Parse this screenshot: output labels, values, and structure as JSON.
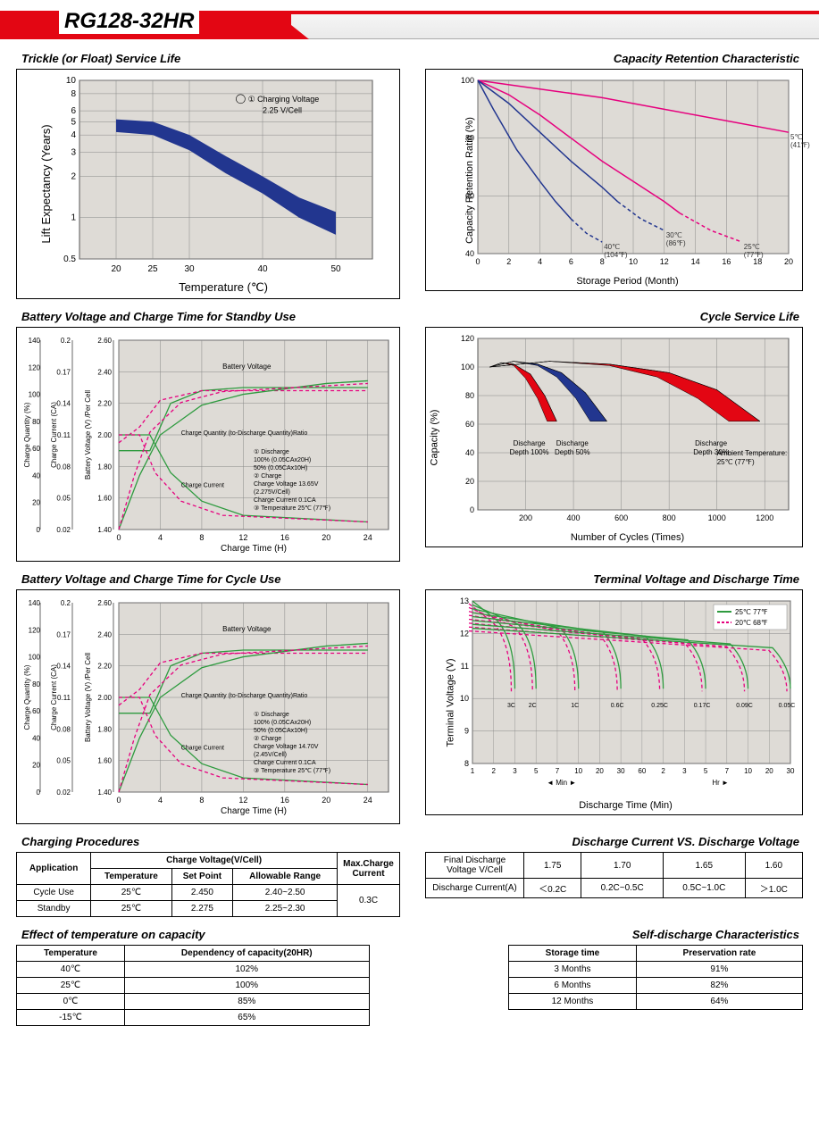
{
  "model": "RG128-32HR",
  "trickle": {
    "title": "Trickle (or Float) Service Life",
    "xlabel": "Temperature (℃)",
    "ylabel": "Lift  Expectancy (Years)",
    "xlim": [
      15,
      55
    ],
    "xticks": [
      20,
      25,
      30,
      40,
      50
    ],
    "ylim_log": [
      0.5,
      10
    ],
    "yticks": [
      0.5,
      1,
      2,
      3,
      4,
      5,
      6,
      8,
      10
    ],
    "band_upper": [
      [
        20,
        5.2
      ],
      [
        25,
        5.0
      ],
      [
        30,
        4.0
      ],
      [
        35,
        2.8
      ],
      [
        40,
        2.0
      ],
      [
        45,
        1.4
      ],
      [
        50,
        1.1
      ]
    ],
    "band_lower": [
      [
        20,
        4.2
      ],
      [
        25,
        4.0
      ],
      [
        30,
        3.1
      ],
      [
        35,
        2.1
      ],
      [
        40,
        1.5
      ],
      [
        45,
        1.0
      ],
      [
        50,
        0.75
      ]
    ],
    "band_color": "#22368f",
    "ann1": "① Charging Voltage",
    "ann2": "2.25 V/Cell",
    "axis_fontsize": 13,
    "bg": "#dedbd6",
    "grid": "#888888"
  },
  "retention": {
    "title": "Capacity Retention Characteristic",
    "xlabel": "Storage Period (Month)",
    "ylabel": "Capacity Retention Ratio (%)",
    "xlim": [
      0,
      20
    ],
    "xticks": [
      0,
      2,
      4,
      6,
      8,
      10,
      12,
      14,
      16,
      18,
      20
    ],
    "ylim": [
      40,
      100
    ],
    "yticks": [
      40,
      60,
      80,
      100
    ],
    "curves": [
      {
        "label": "5℃",
        "sub": "(41℉)",
        "color": "#e6007e",
        "pts": [
          [
            0,
            100
          ],
          [
            4,
            97
          ],
          [
            8,
            94
          ],
          [
            12,
            90
          ],
          [
            16,
            86
          ],
          [
            20,
            82
          ]
        ]
      },
      {
        "label": "25℃",
        "sub": "(77℉)",
        "color": "#e6007e",
        "pts": [
          [
            0,
            100
          ],
          [
            2,
            95
          ],
          [
            4,
            88
          ],
          [
            6,
            80
          ],
          [
            8,
            72
          ],
          [
            10,
            65
          ],
          [
            12,
            58
          ],
          [
            13,
            54
          ]
        ],
        "dash_after": 13,
        "dash_pts": [
          [
            13,
            54
          ],
          [
            15,
            48
          ],
          [
            17,
            44
          ]
        ]
      },
      {
        "label": "30℃",
        "sub": "(86℉)",
        "color": "#22368f",
        "pts": [
          [
            0,
            100
          ],
          [
            2,
            92
          ],
          [
            4,
            82
          ],
          [
            6,
            72
          ],
          [
            8,
            63
          ],
          [
            9,
            58
          ]
        ],
        "dash_after": 9,
        "dash_pts": [
          [
            9,
            58
          ],
          [
            10.5,
            52
          ],
          [
            12,
            48
          ]
        ]
      },
      {
        "label": "40℃",
        "sub": "(104℉)",
        "color": "#22368f",
        "pts": [
          [
            0,
            100
          ],
          [
            1,
            90
          ],
          [
            2.5,
            76
          ],
          [
            4,
            65
          ],
          [
            5,
            58
          ],
          [
            6,
            52
          ]
        ],
        "dash_after": 6,
        "dash_pts": [
          [
            6,
            52
          ],
          [
            7,
            47
          ],
          [
            8,
            44
          ]
        ]
      }
    ],
    "bg": "#dedbd6",
    "grid": "#888888",
    "line_width": 1.5
  },
  "standby": {
    "title": "Battery Voltage and Charge Time for Standby Use",
    "xlabel": "Charge Time (H)",
    "y1": "Charge Quantity (%)",
    "y2": "Charge Current (CA)",
    "y3": "Battery Voltage (V) /Per Cell",
    "xlim": [
      0,
      26
    ],
    "xticks": [
      0,
      4,
      8,
      12,
      16,
      20,
      24
    ],
    "y1_ticks": [
      0,
      20,
      40,
      60,
      80,
      100,
      120,
      140
    ],
    "y2_ticks": [
      0.02,
      0.05,
      0.08,
      0.11,
      0.14,
      0.17,
      0.2
    ],
    "y3_ticks": [
      1.4,
      1.6,
      1.8,
      2.0,
      2.2,
      2.4,
      2.6
    ],
    "ann_voltage": "Battery Voltage",
    "ann_qty": "Charge Quantity (to-Discharge Quantity)Ratio",
    "ann_current": "Charge Current",
    "ann1": "① Discharge",
    "ann1a": "100% (0.05CAx20H)",
    "ann1b": "50%  (0.05CAx10H)",
    "ann2": "② Charge",
    "ann2a": "Charge Voltage 13.65V",
    "ann2b": "(2.275V/Cell)",
    "ann2c": "Charge Current 0.1CA",
    "ann3": "③ Temperature 25℃ (77℉)",
    "solid_color": "#2e9b3f",
    "dash_color": "#e6007e",
    "bg": "#dedbd6",
    "grid": "#888888"
  },
  "cyclelife": {
    "title": "Cycle Service Life",
    "xlabel": "Number of Cycles (Times)",
    "ylabel": "Capacity (%)",
    "xlim": [
      0,
      1300
    ],
    "xticks": [
      200,
      400,
      600,
      800,
      1000,
      1200
    ],
    "ylim": [
      0,
      120
    ],
    "yticks": [
      0,
      20,
      40,
      60,
      80,
      100,
      120
    ],
    "bands": [
      {
        "label": "Discharge\nDepth 100%",
        "color": "#e30613",
        "upper": [
          [
            50,
            100
          ],
          [
            100,
            103
          ],
          [
            150,
            102
          ],
          [
            220,
            95
          ],
          [
            280,
            80
          ],
          [
            330,
            62
          ]
        ],
        "lower": [
          [
            50,
            100
          ],
          [
            100,
            103
          ],
          [
            150,
            101
          ],
          [
            200,
            92
          ],
          [
            250,
            78
          ],
          [
            290,
            62
          ]
        ]
      },
      {
        "label": "Discharge\nDepth 50%",
        "color": "#22368f",
        "upper": [
          [
            50,
            100
          ],
          [
            150,
            104
          ],
          [
            250,
            102
          ],
          [
            350,
            96
          ],
          [
            450,
            82
          ],
          [
            540,
            62
          ]
        ],
        "lower": [
          [
            50,
            100
          ],
          [
            150,
            104
          ],
          [
            250,
            101
          ],
          [
            330,
            93
          ],
          [
            410,
            78
          ],
          [
            470,
            62
          ]
        ]
      },
      {
        "label": "Discharge\nDepth 30%",
        "color": "#e30613",
        "upper": [
          [
            50,
            100
          ],
          [
            300,
            104
          ],
          [
            550,
            102
          ],
          [
            800,
            96
          ],
          [
            1000,
            84
          ],
          [
            1180,
            62
          ]
        ],
        "lower": [
          [
            50,
            100
          ],
          [
            300,
            104
          ],
          [
            550,
            101
          ],
          [
            750,
            93
          ],
          [
            920,
            78
          ],
          [
            1050,
            62
          ]
        ]
      }
    ],
    "ann_temp": "Ambient Temperature:\n25℃  (77℉)",
    "bg": "#dedbd6",
    "grid": "#888888"
  },
  "cycleuse": {
    "title": "Battery Voltage and Charge Time for Cycle Use",
    "xlabel": "Charge Time (H)",
    "ann2a": "Charge Voltage 14.70V",
    "ann2b": "(2.45V/Cell)"
  },
  "terminal": {
    "title": "Terminal Voltage and Discharge Time",
    "ylabel": "Terminal Voltage (V)",
    "xlabel": "Discharge Time (Min)",
    "ylim": [
      8,
      13
    ],
    "yticks": [
      8,
      9,
      10,
      11,
      12,
      13
    ],
    "xticks_label": [
      "1",
      "2",
      "3",
      "5",
      "7",
      "10",
      "20",
      "30",
      "60",
      "2",
      "3",
      "5",
      "7",
      "10",
      "20",
      "30"
    ],
    "xsection1": "Min",
    "xsection2": "Hr",
    "legend": [
      {
        "c": "#2e9b3f",
        "t": "25℃ 77℉"
      },
      {
        "c": "#e6007e",
        "t": "20℃ 68℉"
      }
    ],
    "rate_labels": [
      "3C",
      "2C",
      "1C",
      "0.6C",
      "0.25C",
      "0.17C",
      "0.09C",
      "0.05C"
    ],
    "bg": "#dedbd6",
    "grid": "#888888",
    "solid": "#2e9b3f",
    "dash": "#e6007e"
  },
  "charging_procedures": {
    "title": "Charging Procedures",
    "h_app": "Application",
    "h_cv": "Charge Voltage(V/Cell)",
    "h_max": "Max.Charge Current",
    "h_temp": "Temperature",
    "h_sp": "Set Point",
    "h_ar": "Allowable Range",
    "rows": [
      {
        "app": "Cycle Use",
        "t": "25℃",
        "sp": "2.450",
        "ar": "2.40~2.50"
      },
      {
        "app": "Standby",
        "t": "25℃",
        "sp": "2.275",
        "ar": "2.25~2.30"
      }
    ],
    "max": "0.3C"
  },
  "discharge_vs": {
    "title": "Discharge Current VS. Discharge Voltage",
    "h1": "Final Discharge Voltage V/Cell",
    "v": [
      "1.75",
      "1.70",
      "1.65",
      "1.60"
    ],
    "h2": "Discharge Current(A)",
    "a": [
      "＜0.2C",
      "0.2C~0.5C",
      "0.5C~1.0C",
      "＞1.0C"
    ]
  },
  "temp_effect": {
    "title": "Effect of temperature on capacity",
    "h1": "Temperature",
    "h2": "Dependency of capacity(20HR)",
    "rows": [
      [
        "40℃",
        "102%"
      ],
      [
        "25℃",
        "100%"
      ],
      [
        "0℃",
        "85%"
      ],
      [
        "-15℃",
        "65%"
      ]
    ]
  },
  "self_discharge": {
    "title": "Self-discharge Characteristics",
    "h1": "Storage time",
    "h2": "Preservation rate",
    "rows": [
      [
        "3 Months",
        "91%"
      ],
      [
        "6 Months",
        "82%"
      ],
      [
        "12 Months",
        "64%"
      ]
    ]
  }
}
